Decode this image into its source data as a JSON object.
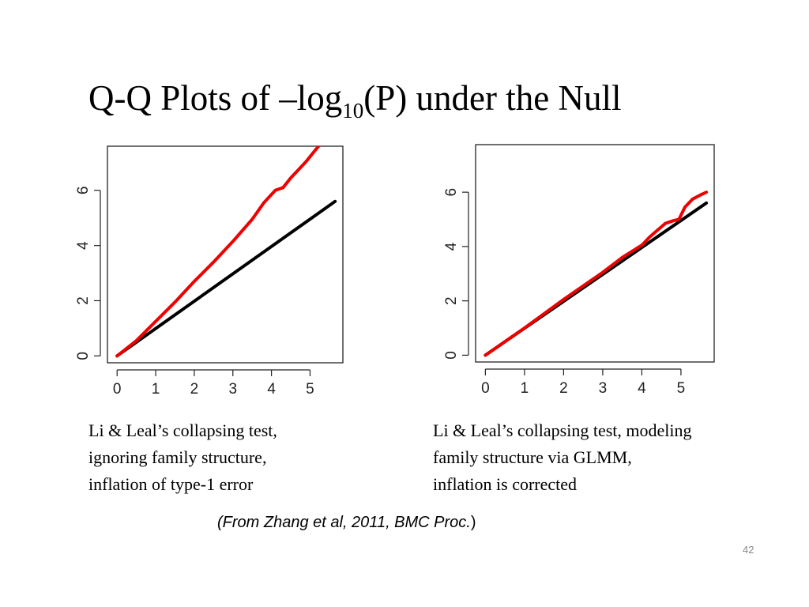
{
  "slide": {
    "title_main": "Q-Q Plots of –log",
    "title_sub": "10",
    "title_rest": "(P)  under the Null",
    "page_number": "42"
  },
  "captions": {
    "left": [
      "Li & Leal’s collapsing test,",
      "ignoring family structure,",
      "inflation of type-1 error"
    ],
    "right": [
      "Li & Leal’s collapsing test, modeling",
      "family structure via GLMM,",
      "inflation is corrected"
    ]
  },
  "source": {
    "prefix": "(From Zhang et al, 2011, BMC Proc.",
    "suffix": ")"
  },
  "chart_data": [
    {
      "type": "line",
      "title": "",
      "xlabel": "",
      "ylabel": "",
      "xlim": [
        -0.25,
        5.85
      ],
      "ylim": [
        -0.25,
        7.6
      ],
      "xticks": [
        "0",
        "1",
        "2",
        "3",
        "4",
        "5"
      ],
      "yticks": [
        "0",
        "2",
        "4",
        "6"
      ],
      "colors": {
        "series": [
          "#000000",
          "#ee0000"
        ]
      },
      "series": [
        {
          "x": [
            0,
            5.65
          ],
          "y": [
            0,
            5.6
          ]
        },
        {
          "x": [
            0,
            0.5,
            1.0,
            1.5,
            2.0,
            2.5,
            3.0,
            3.5,
            3.8,
            4.0,
            4.1,
            4.3,
            4.5,
            4.7,
            4.9,
            5.1,
            5.25
          ],
          "y": [
            0,
            0.55,
            1.25,
            1.95,
            2.7,
            3.4,
            4.15,
            4.95,
            5.55,
            5.85,
            6.0,
            6.1,
            6.45,
            6.75,
            7.05,
            7.4,
            7.65
          ]
        }
      ]
    },
    {
      "type": "line",
      "title": "",
      "xlabel": "",
      "ylabel": "",
      "xlim": [
        -0.25,
        5.85
      ],
      "ylim": [
        -0.25,
        7.75
      ],
      "xticks": [
        "0",
        "1",
        "2",
        "3",
        "4",
        "5"
      ],
      "yticks": [
        "0",
        "2",
        "4",
        "6"
      ],
      "colors": {
        "series": [
          "#000000",
          "#ee0000"
        ]
      },
      "series": [
        {
          "x": [
            0,
            5.65
          ],
          "y": [
            0,
            5.6
          ]
        },
        {
          "x": [
            0,
            1.0,
            2.0,
            3.0,
            3.5,
            4.0,
            4.2,
            4.4,
            4.6,
            4.8,
            4.95,
            5.1,
            5.3,
            5.5,
            5.65
          ],
          "y": [
            0,
            1.0,
            2.05,
            3.05,
            3.6,
            4.05,
            4.35,
            4.6,
            4.85,
            4.95,
            5.0,
            5.45,
            5.75,
            5.9,
            6.0
          ]
        }
      ]
    }
  ]
}
